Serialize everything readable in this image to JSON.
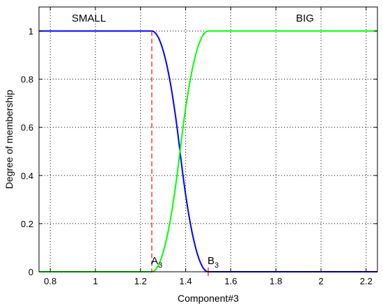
{
  "chart_data": {
    "type": "line",
    "xlabel": "Component#3",
    "ylabel": "Degree of membership",
    "xlim": [
      0.75,
      2.25
    ],
    "ylim": [
      0,
      1.1
    ],
    "xticks": [
      0.8,
      1,
      1.2,
      1.4,
      1.6,
      1.8,
      2,
      2.2
    ],
    "xtick_labels": [
      "0.8",
      "1",
      "1.2",
      "1.4",
      "1.6",
      "1.8",
      "2",
      "2.2"
    ],
    "yticks": [
      0,
      0.2,
      0.4,
      0.6,
      0.8,
      1
    ],
    "ytick_labels": [
      "0",
      "0.2",
      "0.4",
      "0.6",
      "0.8",
      "1"
    ],
    "grid": true,
    "colors": {
      "small": "#0000ff",
      "big": "#00ff00",
      "marker": "#ff0000"
    },
    "series": [
      {
        "name": "SMALL",
        "color": "#0000ff",
        "a": 1.25,
        "b": 1.5,
        "shape": "z"
      },
      {
        "name": "BIG",
        "color": "#00ff00",
        "a": 1.25,
        "b": 1.5,
        "shape": "s"
      }
    ],
    "markers": [
      {
        "label": "A",
        "sub": "3",
        "x": 1.25,
        "style": "dashed-line",
        "color": "#ff0000"
      },
      {
        "label": "B",
        "sub": "3",
        "x": 1.5,
        "style": "plus",
        "color": "#ff0000"
      }
    ]
  }
}
